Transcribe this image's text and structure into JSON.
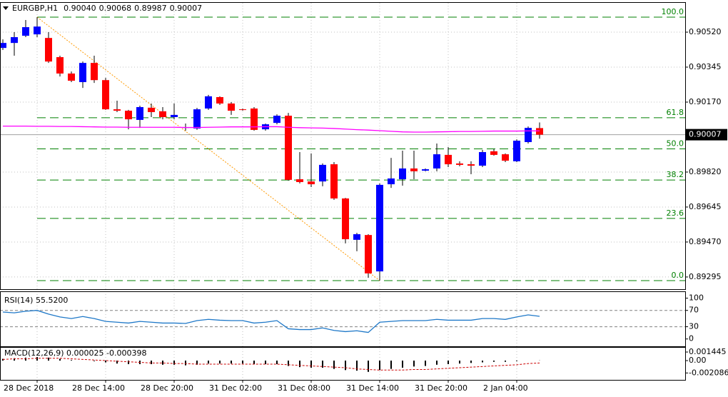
{
  "chart_data": [
    {
      "type": "candlestick",
      "title": "EURGBP,H1",
      "header_values": [
        "0.90040",
        "0.90068",
        "0.89987",
        "0.90007"
      ],
      "categories": [
        "28 Dec 2018",
        null,
        null,
        null,
        null,
        null,
        "28 Dec 14:00",
        null,
        null,
        null,
        null,
        null,
        "28 Dec 20:00",
        null,
        null,
        null,
        null,
        null,
        "31 Dec 02:00",
        null,
        null,
        null,
        null,
        null,
        "31 Dec 08:00",
        null,
        null,
        null,
        null,
        null,
        "31 Dec 14:00",
        null,
        null,
        null,
        null,
        null,
        "31 Dec 20:00",
        null,
        null,
        null,
        null,
        null,
        "2 Jan 04:00",
        null,
        null,
        null,
        null,
        null
      ],
      "open": [
        0.90441,
        0.90466,
        0.90502,
        0.90509,
        0.90491,
        0.90395,
        0.90313,
        0.9027,
        0.90366,
        0.9028,
        0.90134,
        0.90127,
        0.90081,
        0.90142,
        0.90124,
        0.90095,
        0.90041,
        0.90038,
        0.90138,
        0.90195,
        0.90163,
        0.90134,
        0.90138,
        0.90034,
        0.90066,
        0.90102,
        0.89784,
        0.89773,
        0.89773,
        0.89859,
        0.89688,
        0.89481,
        0.89505,
        0.89323,
        0.89759,
        0.89784,
        0.89838,
        0.89827,
        0.89838,
        0.89906,
        0.89863,
        0.89859,
        0.89852,
        0.89924,
        0.89909,
        0.89874,
        0.8997,
        0.9004
      ],
      "high": [
        0.90484,
        0.9052,
        0.90581,
        0.90595,
        0.9052,
        0.90402,
        0.90323,
        0.90373,
        0.90402,
        0.90291,
        0.90177,
        0.90131,
        0.90152,
        0.90163,
        0.90145,
        0.90163,
        0.90063,
        0.90141,
        0.90206,
        0.90199,
        0.9017,
        0.90138,
        0.90145,
        0.90063,
        0.90109,
        0.90116,
        0.8992,
        0.89913,
        0.89863,
        0.8987,
        0.89691,
        0.89516,
        0.89509,
        0.89763,
        0.89891,
        0.89927,
        0.89927,
        0.89838,
        0.89963,
        0.89945,
        0.89874,
        0.89874,
        0.89931,
        0.89935,
        0.89913,
        0.89984,
        0.90048,
        0.90068
      ],
      "low": [
        0.90431,
        0.90402,
        0.90495,
        0.90495,
        0.90366,
        0.90298,
        0.9027,
        0.90241,
        0.90266,
        0.90131,
        0.9012,
        0.90034,
        0.90041,
        0.90095,
        0.90084,
        0.90084,
        0.90027,
        0.90031,
        0.90131,
        0.90156,
        0.90106,
        0.90127,
        0.90027,
        0.90027,
        0.90059,
        0.89777,
        0.89763,
        0.89745,
        0.89749,
        0.89681,
        0.89463,
        0.89424,
        0.89291,
        0.89277,
        0.89741,
        0.89752,
        0.89784,
        0.89824,
        0.89824,
        0.89845,
        0.89849,
        0.89809,
        0.89845,
        0.89902,
        0.8987,
        0.8987,
        0.89963,
        0.89987
      ],
      "close": [
        0.90466,
        0.90495,
        0.90545,
        0.90548,
        0.90373,
        0.90313,
        0.90277,
        0.90366,
        0.9028,
        0.90134,
        0.90127,
        0.90084,
        0.90145,
        0.9012,
        0.90095,
        0.90106,
        0.90045,
        0.90134,
        0.90199,
        0.90163,
        0.90127,
        0.90131,
        0.90031,
        0.90059,
        0.90102,
        0.89781,
        0.8977,
        0.89759,
        0.89856,
        0.89688,
        0.89484,
        0.89509,
        0.89313,
        0.89756,
        0.89788,
        0.89838,
        0.89824,
        0.89834,
        0.89909,
        0.89859,
        0.89856,
        0.89852,
        0.8992,
        0.89906,
        0.89877,
        0.89977,
        0.90041,
        0.90007
      ],
      "bull_color": "#0000ff",
      "bear_color": "#ff0000",
      "ylim": [
        0.89234,
        0.90663
      ],
      "yticks": [
        {
          "value": 0.9052,
          "label": "0.90520"
        },
        {
          "value": 0.90345,
          "label": "0.90345"
        },
        {
          "value": 0.9017,
          "label": "0.90170"
        },
        {
          "value": 0.8982,
          "label": "0.89820"
        },
        {
          "value": 0.89645,
          "label": "0.89645"
        },
        {
          "value": 0.8947,
          "label": "0.89470"
        },
        {
          "value": 0.89295,
          "label": "0.89295"
        }
      ],
      "moving_average": {
        "color": "#ff00ff",
        "values": [
          0.9005,
          0.9005,
          0.9005,
          0.90049,
          0.90049,
          0.90048,
          0.90048,
          0.90047,
          0.90046,
          0.90045,
          0.90045,
          0.90044,
          0.90044,
          0.90044,
          0.90044,
          0.90044,
          0.90043,
          0.90043,
          0.90044,
          0.90045,
          0.90046,
          0.90046,
          0.90046,
          0.90047,
          0.90047,
          0.90044,
          0.90042,
          0.90041,
          0.9004,
          0.90038,
          0.90035,
          0.90032,
          0.9003,
          0.90027,
          0.90024,
          0.90021,
          0.9002,
          0.9002,
          0.90021,
          0.90022,
          0.90023,
          0.90023,
          0.90024,
          0.90025,
          0.90025,
          0.90025,
          0.90026,
          0.90026
        ]
      },
      "fib_color": "#008000",
      "fib_levels": [
        {
          "label": "100.0",
          "value": 0.90595
        },
        {
          "label": "61.8",
          "value": 0.90092
        },
        {
          "label": "50.0",
          "value": 0.89936
        },
        {
          "label": "38.2",
          "value": 0.8978
        },
        {
          "label": "23.6",
          "value": 0.89588
        },
        {
          "label": "0.0",
          "value": 0.89277
        }
      ],
      "trendline_color": "#ff9900",
      "last_price": {
        "value": 0.90007,
        "label": "0.90007"
      }
    },
    {
      "type": "line",
      "label": "RSI(14) 55.5200",
      "color": "#1e78c8",
      "values": [
        66,
        64,
        68,
        70,
        61,
        54,
        50,
        55,
        50,
        43,
        41,
        39,
        43,
        41,
        39,
        39,
        38,
        45,
        48,
        46,
        45,
        45,
        39,
        41,
        45,
        25,
        23,
        23,
        27,
        21,
        18,
        20,
        16,
        41,
        43,
        45,
        45,
        45,
        48,
        46,
        46,
        46,
        50,
        50,
        48,
        54,
        59,
        55.52
      ],
      "ylim": [
        -18,
        115
      ],
      "yticks": [
        100,
        70,
        30,
        0
      ],
      "levels": [
        70,
        30
      ]
    },
    {
      "type": "macd",
      "label": "MACD(12,26,9) 0.000025 -0.000398",
      "histogram": [
        0.0003,
        0.0004,
        0.0005,
        0.0006,
        0.0005,
        0.0003,
        0.0001,
        0.0,
        -0.0001,
        -0.0003,
        -0.0005,
        -0.0006,
        -0.0006,
        -0.0006,
        -0.0007,
        -0.0007,
        -0.0008,
        -0.0007,
        -0.0005,
        -0.0005,
        -0.0005,
        -0.0005,
        -0.0006,
        -0.0006,
        -0.0006,
        -0.0009,
        -0.0011,
        -0.0012,
        -0.0012,
        -0.0014,
        -0.0016,
        -0.0017,
        -0.0019,
        -0.0016,
        -0.0014,
        -0.0012,
        -0.001,
        -0.0009,
        -0.0007,
        -0.0006,
        -0.0005,
        -0.0004,
        -0.0003,
        -0.0002,
        -0.0002,
        -0.0001,
        0.0,
        2.5e-05
      ],
      "signal": {
        "color": "#cc0000",
        "values": [
          0.0002,
          0.0003,
          0.0003,
          0.0004,
          0.0004,
          0.0004,
          0.0003,
          0.0002,
          0.0001,
          0.0,
          -0.0001,
          -0.0002,
          -0.0003,
          -0.0004,
          -0.0004,
          -0.0005,
          -0.0005,
          -0.0006,
          -0.0006,
          -0.0006,
          -0.0006,
          -0.0006,
          -0.0006,
          -0.0006,
          -0.0006,
          -0.0007,
          -0.0008,
          -0.0009,
          -0.001,
          -0.0011,
          -0.0012,
          -0.0014,
          -0.0015,
          -0.0016,
          -0.0016,
          -0.0016,
          -0.0015,
          -0.0015,
          -0.0014,
          -0.0013,
          -0.0012,
          -0.0011,
          -0.001,
          -0.0009,
          -0.0008,
          -0.0007,
          -0.0005,
          -0.000398
        ]
      },
      "ylim": [
        -0.00325,
        0.00217
      ],
      "yticks": [
        0.001445,
        {
          "value": 0,
          "label": "0.00"
        },
        -0.002086
      ]
    }
  ]
}
